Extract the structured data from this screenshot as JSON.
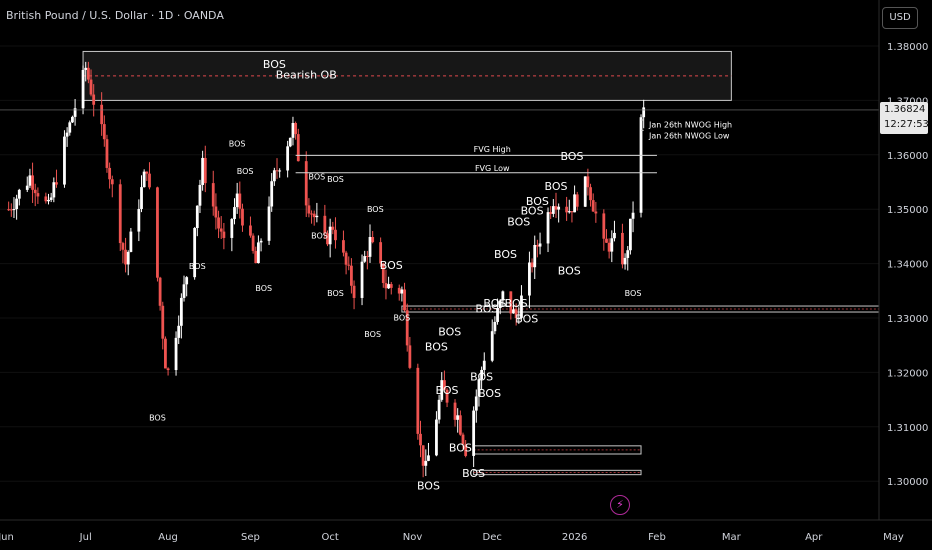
{
  "header": {
    "symbol_title": "British Pound / U.S. Dollar · 1D · OANDA",
    "currency_button": "USD"
  },
  "price_label": {
    "price": "1.36824",
    "countdown": "12:27:53"
  },
  "colors": {
    "background": "#000000",
    "bull": "#ffffff",
    "bear": "#ef5350",
    "text": "#d1d4dc",
    "grid": "#1a1a1a"
  },
  "icons": {
    "alert": "lightning-icon"
  },
  "chart_data": {
    "type": "candlestick",
    "title": "British Pound / U.S. Dollar · 1D · OANDA",
    "ylim": [
      1.2915,
      1.3825
    ],
    "y_ticks": [
      1.3,
      1.31,
      1.32,
      1.33,
      1.34,
      1.35,
      1.36,
      1.37,
      1.38
    ],
    "y_tick_labels": [
      "1.30000",
      "1.31000",
      "1.32000",
      "1.33000",
      "1.34000",
      "1.35000",
      "1.36000",
      "1.37000",
      "1.38000"
    ],
    "x_tick_labels": [
      "Jun",
      "Jul",
      "Aug",
      "Sep",
      "Oct",
      "Nov",
      "Dec",
      "2026",
      "Feb",
      "Mar",
      "Apr",
      "May"
    ],
    "last_price": 1.36824,
    "path": [
      [
        "2025-06-02",
        1.35
      ],
      [
        "2025-06-10",
        1.356
      ],
      [
        "2025-06-17",
        1.35
      ],
      [
        "2025-06-23",
        1.362
      ],
      [
        "2025-06-30",
        1.374
      ],
      [
        "2025-07-01",
        1.376
      ],
      [
        "2025-07-08",
        1.362
      ],
      [
        "2025-07-16",
        1.34
      ],
      [
        "2025-07-24",
        1.358
      ],
      [
        "2025-07-31",
        1.322
      ],
      [
        "2025-08-01",
        1.32
      ],
      [
        "2025-08-08",
        1.338
      ],
      [
        "2025-08-14",
        1.358
      ],
      [
        "2025-08-22",
        1.343
      ],
      [
        "2025-08-27",
        1.352
      ],
      [
        "2025-09-03",
        1.34
      ],
      [
        "2025-09-10",
        1.356
      ],
      [
        "2025-09-17",
        1.365
      ],
      [
        "2025-09-22",
        1.352
      ],
      [
        "2025-09-29",
        1.344
      ],
      [
        "2025-10-02",
        1.347
      ],
      [
        "2025-10-10",
        1.335
      ],
      [
        "2025-10-16",
        1.344
      ],
      [
        "2025-10-22",
        1.336
      ],
      [
        "2025-10-28",
        1.335
      ],
      [
        "2025-11-04",
        1.306
      ],
      [
        "2025-11-06",
        1.302
      ],
      [
        "2025-11-12",
        1.317
      ],
      [
        "2025-11-18",
        1.312
      ],
      [
        "2025-11-21",
        1.306
      ],
      [
        "2025-11-28",
        1.323
      ],
      [
        "2025-12-05",
        1.334
      ],
      [
        "2025-12-10",
        1.33
      ],
      [
        "2025-12-17",
        1.342
      ],
      [
        "2025-12-24",
        1.352
      ],
      [
        "2025-12-30",
        1.35
      ],
      [
        "2026-01-06",
        1.355
      ],
      [
        "2026-01-12",
        1.343
      ],
      [
        "2026-01-16",
        1.344
      ],
      [
        "2026-01-20",
        1.34
      ],
      [
        "2026-01-23",
        1.35
      ],
      [
        "2026-01-26",
        1.366
      ],
      [
        "2026-01-27",
        1.368
      ]
    ],
    "zones": [
      {
        "name": "Bearish OB",
        "from": "2025-06-30",
        "to": "2026-03-01",
        "low": 1.37,
        "high": 1.379
      },
      {
        "name": "demand-zone-1",
        "from": "2025-10-28",
        "to": "2026-07-01",
        "low": 1.3311,
        "high": 1.3322
      },
      {
        "name": "demand-zone-2",
        "from": "2025-11-24",
        "to": "2026-01-26",
        "low": 1.305,
        "high": 1.3065
      },
      {
        "name": "demand-zone-3",
        "from": "2025-11-24",
        "to": "2026-01-26",
        "low": 1.3012,
        "high": 1.302
      }
    ],
    "levels": [
      {
        "name": "FVG High",
        "value": 1.3599,
        "from": "2025-09-18",
        "to": "2026-02-01"
      },
      {
        "name": "FVG Low",
        "value": 1.3567,
        "from": "2025-09-18",
        "to": "2026-02-01"
      },
      {
        "name": "Jan 26th NWOG High",
        "value": 1.3664,
        "from": "2026-01-26",
        "to": "2026-01-27"
      },
      {
        "name": "Jan 26th NWOG Low",
        "value": 1.3645,
        "from": "2026-01-26",
        "to": "2026-01-27"
      }
    ],
    "annotations": [
      {
        "text": "Bearish OB",
        "x": "2025-09-22",
        "y": 1.374,
        "size": "large"
      },
      {
        "text": "BOS",
        "x": "2025-09-10",
        "y": 1.376,
        "size": "large"
      },
      {
        "text": "BOS",
        "x": "2025-08-27",
        "y": 1.3615,
        "size": "small"
      },
      {
        "text": "BOS",
        "x": "2025-08-30",
        "y": 1.3565,
        "size": "small"
      },
      {
        "text": "BOS",
        "x": "2025-09-26",
        "y": 1.3555,
        "size": "small"
      },
      {
        "text": "BOS",
        "x": "2025-10-03",
        "y": 1.355,
        "size": "small"
      },
      {
        "text": "BOS",
        "x": "2025-10-18",
        "y": 1.3495,
        "size": "small"
      },
      {
        "text": "BOS",
        "x": "2025-09-27",
        "y": 1.3446,
        "size": "small"
      },
      {
        "text": "BOS",
        "x": "2025-08-12",
        "y": 1.339,
        "size": "small"
      },
      {
        "text": "BOS",
        "x": "2025-09-06",
        "y": 1.335,
        "size": "small"
      },
      {
        "text": "BOS",
        "x": "2025-10-03",
        "y": 1.334,
        "size": "small"
      },
      {
        "text": "BOS",
        "x": "2025-10-24",
        "y": 1.339,
        "size": "large"
      },
      {
        "text": "BOS",
        "x": "2025-10-17",
        "y": 1.3265,
        "size": "small"
      },
      {
        "text": "BOS",
        "x": "2025-10-28",
        "y": 1.3295,
        "size": "small"
      },
      {
        "text": "BOS",
        "x": "2025-07-28",
        "y": 1.3112,
        "size": "small"
      },
      {
        "text": "BOS",
        "x": "2025-11-15",
        "y": 1.3268,
        "size": "large"
      },
      {
        "text": "BOS",
        "x": "2025-11-10",
        "y": 1.324,
        "size": "large"
      },
      {
        "text": "BOS",
        "x": "2025-11-14",
        "y": 1.316,
        "size": "large"
      },
      {
        "text": "BOS",
        "x": "2025-11-19",
        "y": 1.3055,
        "size": "large"
      },
      {
        "text": "BOS",
        "x": "2025-11-07",
        "y": 1.2985,
        "size": "large"
      },
      {
        "text": "BOS",
        "x": "2025-11-24",
        "y": 1.3008,
        "size": "large"
      },
      {
        "text": "BOS",
        "x": "2025-11-27",
        "y": 1.3185,
        "size": "large"
      },
      {
        "text": "BOS",
        "x": "2025-11-30",
        "y": 1.3155,
        "size": "large"
      },
      {
        "text": "BOS",
        "x": "2025-11-29",
        "y": 1.331,
        "size": "large"
      },
      {
        "text": "BOS",
        "x": "2025-12-02",
        "y": 1.332,
        "size": "large"
      },
      {
        "text": "BOS",
        "x": "2025-12-10",
        "y": 1.332,
        "size": "large"
      },
      {
        "text": "BOS",
        "x": "2025-12-14",
        "y": 1.3292,
        "size": "large"
      },
      {
        "text": "BOS",
        "x": "2025-12-06",
        "y": 1.341,
        "size": "large"
      },
      {
        "text": "BOS",
        "x": "2025-12-11",
        "y": 1.347,
        "size": "large"
      },
      {
        "text": "BOS",
        "x": "2025-12-16",
        "y": 1.349,
        "size": "large"
      },
      {
        "text": "BOS",
        "x": "2025-12-18",
        "y": 1.3508,
        "size": "large"
      },
      {
        "text": "BOS",
        "x": "2025-12-25",
        "y": 1.3535,
        "size": "large"
      },
      {
        "text": "BOS",
        "x": "2025-12-31",
        "y": 1.359,
        "size": "large"
      },
      {
        "text": "BOS",
        "x": "2025-12-30",
        "y": 1.338,
        "size": "large"
      },
      {
        "text": "BOS",
        "x": "2026-01-23",
        "y": 1.334,
        "size": "small"
      },
      {
        "text": "FVG High",
        "x": "2025-12-01",
        "y": 1.3605,
        "size": "small"
      },
      {
        "text": "FVG Low",
        "x": "2025-12-01",
        "y": 1.357,
        "size": "small"
      },
      {
        "text": "Jan 26th NWOG High",
        "x": "2026-01-29",
        "y": 1.365,
        "size": "small"
      },
      {
        "text": "Jan 26th NWOG Low",
        "x": "2026-01-29",
        "y": 1.363,
        "size": "small"
      }
    ]
  }
}
